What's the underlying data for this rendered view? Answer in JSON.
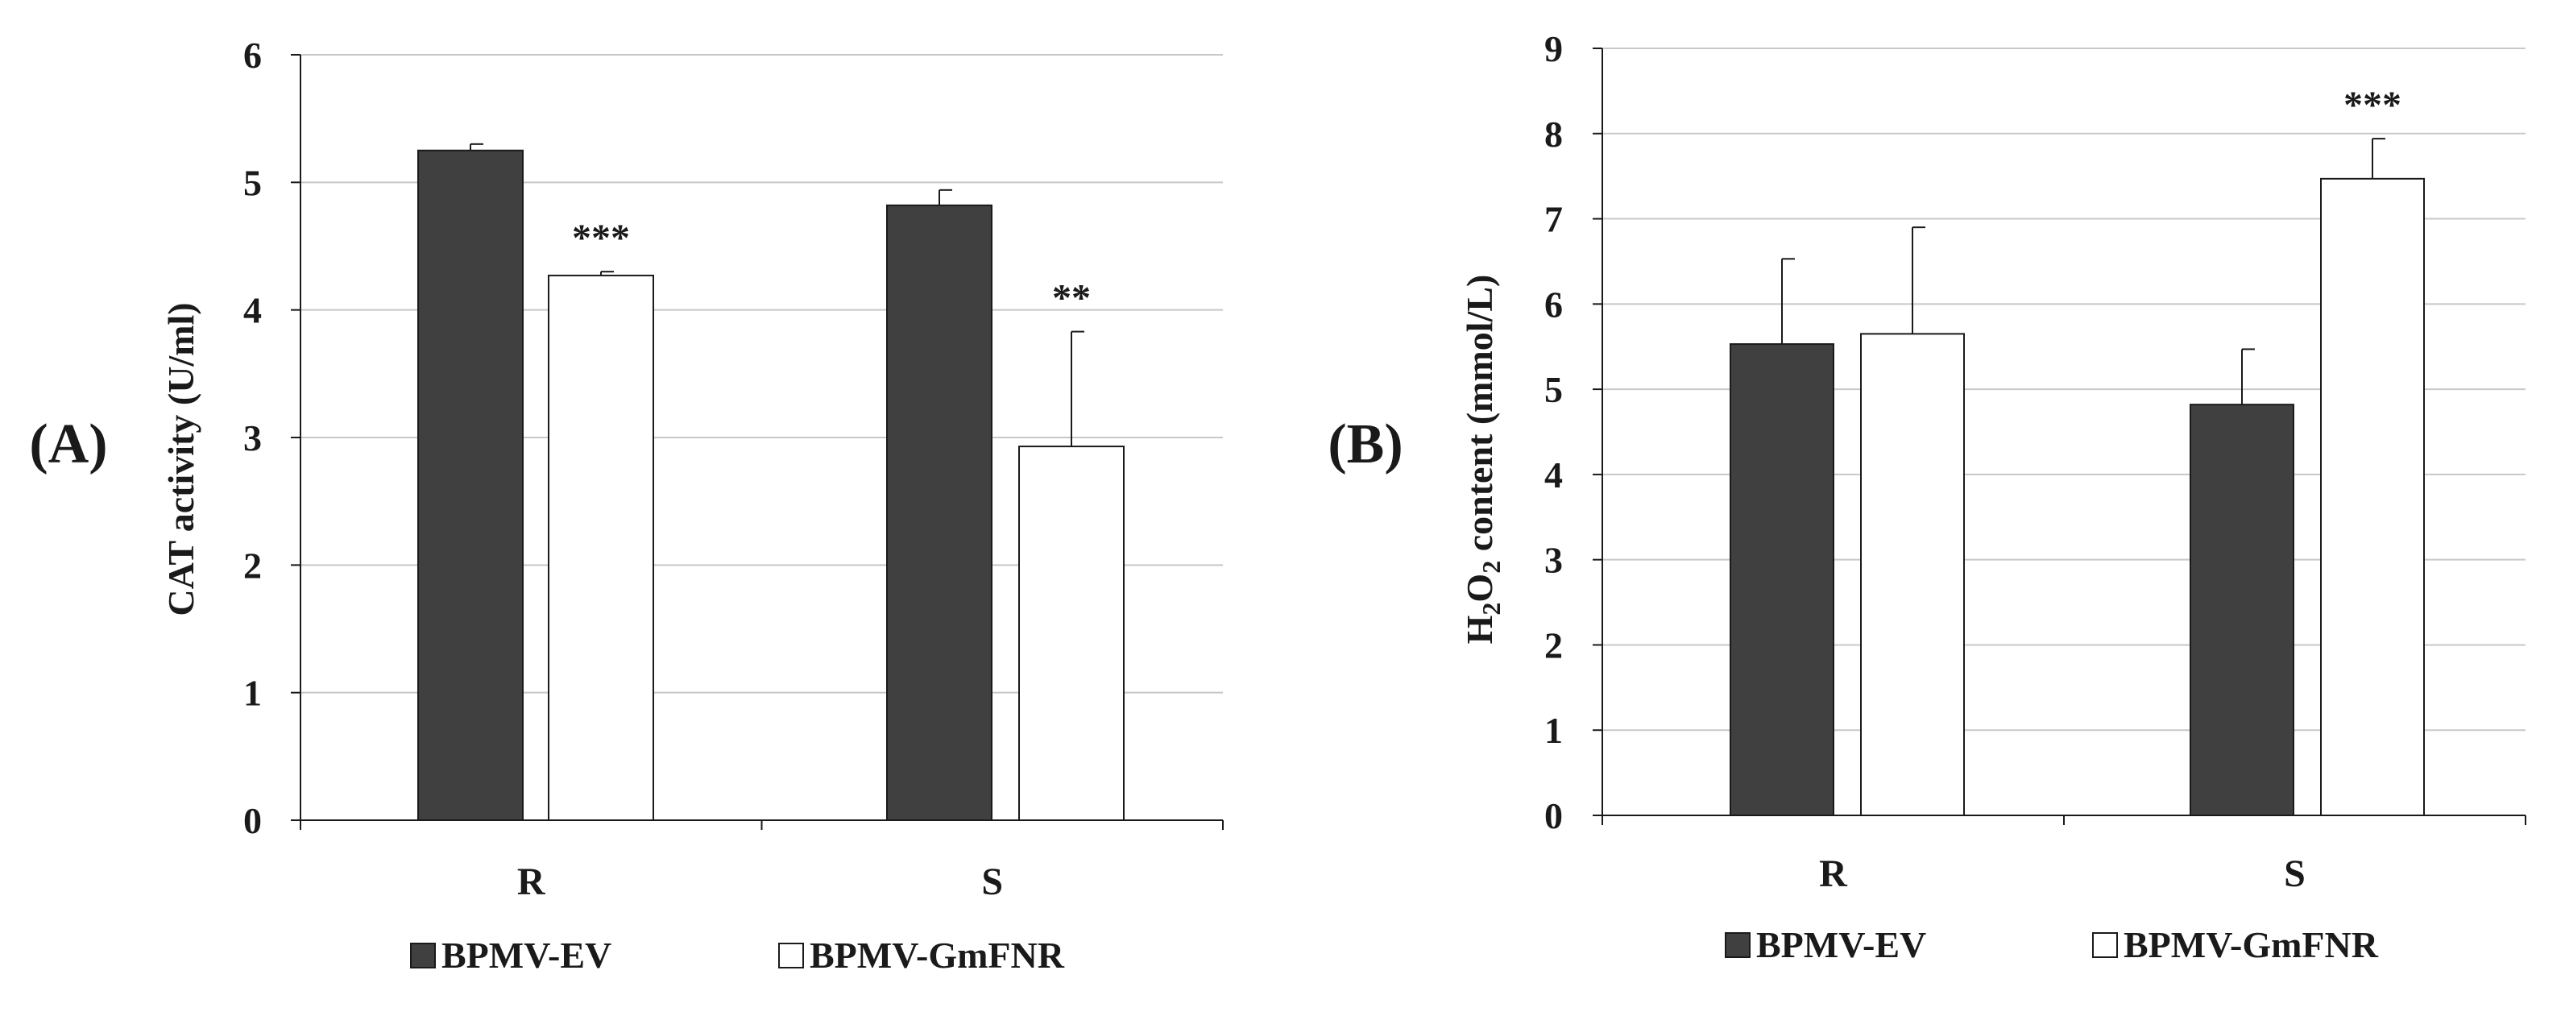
{
  "chart_data": [
    {
      "type": "bar",
      "panel_label": "(A)",
      "title": "",
      "xlabel": "",
      "ylabel": "CAT activity (U/ml)",
      "ylim": [
        0,
        6
      ],
      "yticks": [
        "0",
        "1",
        "2",
        "3",
        "4",
        "5",
        "6"
      ],
      "grid": true,
      "categories": [
        "R",
        "S"
      ],
      "series": [
        {
          "name": "BPMV-EV",
          "color": "#404040",
          "values": [
            5.25,
            4.82
          ],
          "errors": [
            0.05,
            0.12
          ]
        },
        {
          "name": "BPMV-GmFNR",
          "color": "#ffffff",
          "values": [
            4.27,
            2.93
          ],
          "errors": [
            0.03,
            0.9
          ]
        }
      ],
      "annotations": [
        {
          "category": "R",
          "series": "BPMV-GmFNR",
          "text": "***"
        },
        {
          "category": "S",
          "series": "BPMV-GmFNR",
          "text": "**"
        }
      ],
      "legend_position": "bottom"
    },
    {
      "type": "bar",
      "panel_label": "(B)",
      "title": "",
      "xlabel": "",
      "ylabel": "H2O2 content (mmol/L)",
      "ylim": [
        0,
        9
      ],
      "yticks": [
        "0",
        "1",
        "2",
        "3",
        "4",
        "5",
        "6",
        "7",
        "8",
        "9"
      ],
      "grid": true,
      "categories": [
        "R",
        "S"
      ],
      "series": [
        {
          "name": "BPMV-EV",
          "color": "#404040",
          "values": [
            5.53,
            4.82
          ],
          "errors": [
            1.0,
            0.65
          ]
        },
        {
          "name": "BPMV-GmFNR",
          "color": "#ffffff",
          "values": [
            5.65,
            7.47
          ],
          "errors": [
            1.25,
            0.47
          ]
        }
      ],
      "annotations": [
        {
          "category": "S",
          "series": "BPMV-GmFNR",
          "text": "***"
        }
      ],
      "legend_position": "bottom"
    }
  ]
}
